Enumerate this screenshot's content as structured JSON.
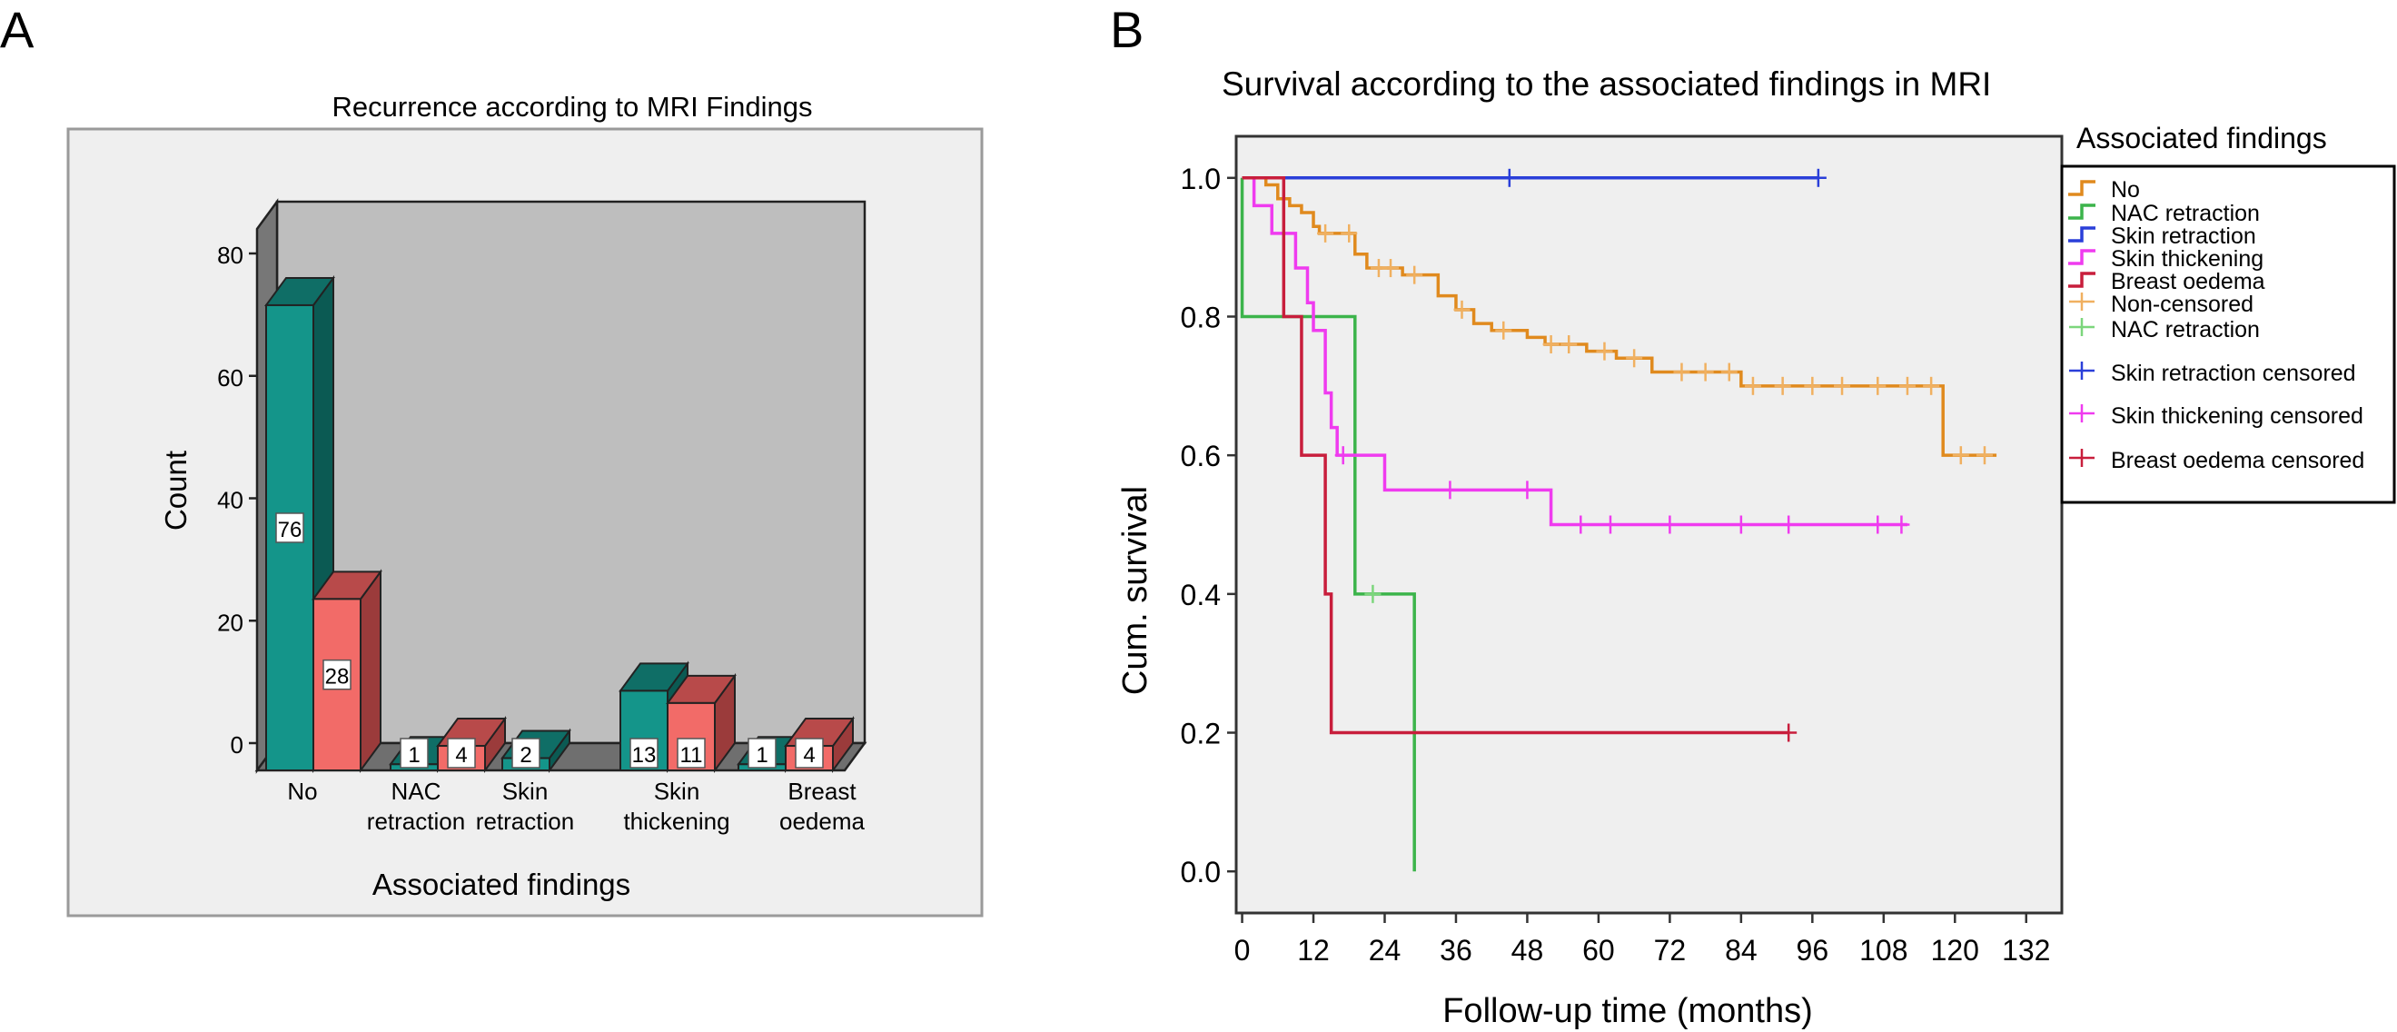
{
  "colors": {
    "teal_front": "#14958a",
    "teal_top": "#0f6e66",
    "teal_side": "#0b5a53",
    "salmon_front": "#f26b68",
    "salmon_top": "#b84a4a",
    "salmon_side": "#9b3b3b",
    "panelA_bg": "#efefef",
    "wall": "#bebebe",
    "floor": "#6f6f6f",
    "panelB_bg": "#efefef",
    "no": "#e08a1e",
    "nac": "#3cb44b",
    "skin_retraction": "#2a3fd9",
    "skin_thickening": "#ef3bef",
    "breast_oedema": "#c81e3c",
    "no_cens": "#f0b060",
    "nac_cens": "#7cd67c"
  },
  "chart_data": [
    {
      "type": "bar",
      "panel_label": "A",
      "title": "Recurrence according to MRI Findings",
      "xlabel": "Associated findings",
      "ylabel": "Count",
      "ylim": [
        0,
        80
      ],
      "yticks": [
        "0",
        "20",
        "40",
        "60",
        "80"
      ],
      "categories": [
        "No",
        "NAC\nretraction",
        "Skin\nretraction",
        "Skin\nthickening",
        "Breast\noedema"
      ],
      "series": [
        {
          "name": "teal",
          "values": [
            76,
            1,
            2,
            13,
            1
          ]
        },
        {
          "name": "salmon",
          "values": [
            28,
            4,
            null,
            11,
            4
          ]
        }
      ]
    },
    {
      "type": "line",
      "panel_label": "B",
      "title": "Survival according to the associated findings in MRI",
      "xlabel": "Follow-up time (months)",
      "ylabel": "Cum. survival",
      "xlim": [
        -1,
        138
      ],
      "ylim": [
        -0.06,
        1.06
      ],
      "xticks": [
        "0",
        "12",
        "24",
        "36",
        "48",
        "60",
        "72",
        "84",
        "96",
        "108",
        "120",
        "132"
      ],
      "yticks": [
        "0.0",
        "0.2",
        "0.4",
        "0.6",
        "0.8",
        "1.0"
      ],
      "legend_title": "Associated findings",
      "legend": [
        "No",
        "NAC retraction",
        "Skin retraction",
        "Skin thickening",
        "Breast oedema",
        "Non-censored",
        "NAC retraction",
        "Skin retraction censored",
        "Skin thickening censored",
        "Breast oedema censored"
      ],
      "series": [
        {
          "name": "No",
          "color_key": "no",
          "x": [
            0,
            4,
            6,
            8,
            10,
            12,
            13,
            15,
            19,
            21,
            24,
            27,
            33,
            36,
            39,
            42,
            45,
            48,
            51,
            58,
            63,
            69,
            79,
            84,
            118,
            127
          ],
          "y": [
            1.0,
            0.99,
            0.97,
            0.96,
            0.95,
            0.93,
            0.92,
            0.92,
            0.89,
            0.87,
            0.87,
            0.86,
            0.83,
            0.81,
            0.79,
            0.78,
            0.78,
            0.77,
            0.76,
            0.75,
            0.74,
            0.72,
            0.72,
            0.7,
            0.6,
            0.6
          ],
          "censored_x": [
            14,
            18,
            23,
            25,
            29,
            37,
            44,
            52,
            55,
            61,
            66,
            74,
            78,
            82,
            86,
            91,
            96,
            101,
            107,
            112,
            116,
            121,
            125
          ],
          "censored_color_key": "no_cens"
        },
        {
          "name": "NAC retraction",
          "color_key": "nac",
          "x": [
            0,
            0,
            19,
            29,
            29
          ],
          "y": [
            1.0,
            0.8,
            0.4,
            0.0,
            0.0
          ],
          "censored_x": [
            22
          ],
          "censored_color_key": "nac_cens"
        },
        {
          "name": "Skin retraction",
          "color_key": "skin_retraction",
          "x": [
            0,
            97
          ],
          "y": [
            1.0,
            1.0
          ],
          "censored_x": [
            45,
            97
          ]
        },
        {
          "name": "Skin thickening",
          "color_key": "skin_thickening",
          "x": [
            0,
            2,
            5,
            9,
            11,
            12,
            14,
            15,
            16,
            24,
            52,
            112
          ],
          "y": [
            1.0,
            0.96,
            0.92,
            0.87,
            0.82,
            0.78,
            0.69,
            0.64,
            0.6,
            0.55,
            0.5,
            0.5
          ],
          "censored_x": [
            17,
            35,
            48,
            57,
            62,
            72,
            84,
            92,
            107,
            111
          ],
          "censored_color_key": "skin_thickening"
        },
        {
          "name": "Breast oedema",
          "color_key": "breast_oedema",
          "x": [
            0,
            7,
            10,
            14,
            15,
            92
          ],
          "y": [
            1.0,
            0.8,
            0.6,
            0.4,
            0.2,
            0.2
          ],
          "censored_x": [
            92
          ],
          "censored_color_key": "breast_oedema"
        }
      ]
    }
  ]
}
